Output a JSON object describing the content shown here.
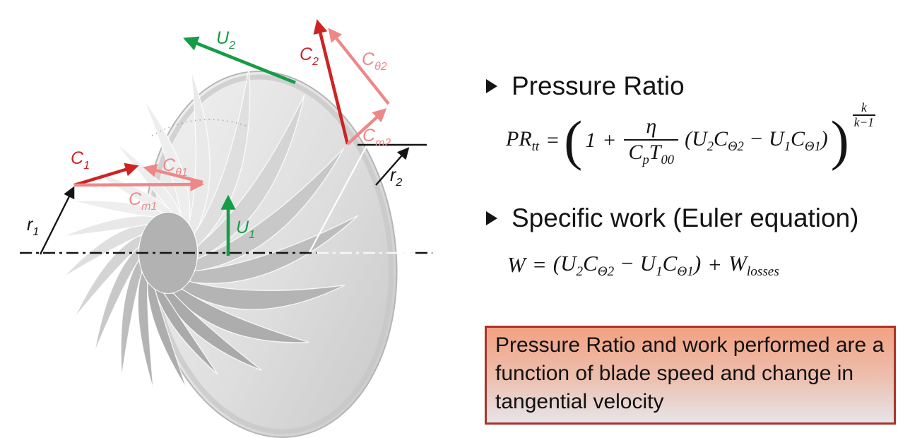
{
  "slide": {
    "background": "#ffffff",
    "headings": [
      {
        "label": "Pressure Ratio"
      },
      {
        "label": "Specific work (Euler equation)"
      }
    ],
    "note_box": {
      "text": "Pressure Ratio and work performed are a function of blade speed and change in tangential velocity",
      "border_color": "#a93428",
      "bg_top": "#f2a182",
      "bg_bottom": "#e7e4e9"
    }
  },
  "formulas": {
    "pr": {
      "lhs_main": "PR",
      "lhs_sub": "tt",
      "eq": "=",
      "big_open": "(",
      "one": "1",
      "plus": "+",
      "frac_num": "η",
      "den1_main": "C",
      "den1_sub": "p",
      "den2_main": "T",
      "den2_sub": "00",
      "open": "(",
      "t1_main": "U",
      "t1_sub": "2",
      "t2_main": "C",
      "t2_sub": "Θ2",
      "minus": "−",
      "t3_main": "U",
      "t3_sub": "1",
      "t4_main": "C",
      "t4_sub": "Θ1",
      "close": ")",
      "big_close": ")",
      "exp_num": "k",
      "exp_den": "k−1"
    },
    "euler": {
      "lhs_main": "W",
      "eq": "=",
      "open": "(",
      "t1_main": "U",
      "t1_sub": "2",
      "t2_main": "C",
      "t2_sub": "Θ2",
      "minus": "−",
      "t3_main": "U",
      "t3_sub": "1",
      "t4_main": "C",
      "t4_sub": "Θ1",
      "close": ")",
      "plus": "+",
      "t5_main": "W",
      "t5_sub": "losses"
    }
  },
  "diagram": {
    "labels": {
      "u2": {
        "main": "U",
        "sub": "2"
      },
      "c2": {
        "main": "C",
        "sub": "2"
      },
      "ctheta2": {
        "main": "C",
        "sub": "θ2"
      },
      "cm2": {
        "main": "C",
        "sub": "m2"
      },
      "c1": {
        "main": "C",
        "sub": "1"
      },
      "ctheta1": {
        "main": "C",
        "sub": "θ1"
      },
      "cm1": {
        "main": "C",
        "sub": "m1"
      },
      "u1": {
        "main": "U",
        "sub": "1"
      },
      "r1": {
        "main": "r",
        "sub": "1"
      },
      "r2": {
        "main": "r",
        "sub": "2"
      }
    },
    "colors": {
      "absolute_velocity": "#cc2424",
      "velocity_components": "#ee8888",
      "blade_speed": "#169c46",
      "annotations": "#141414"
    }
  }
}
